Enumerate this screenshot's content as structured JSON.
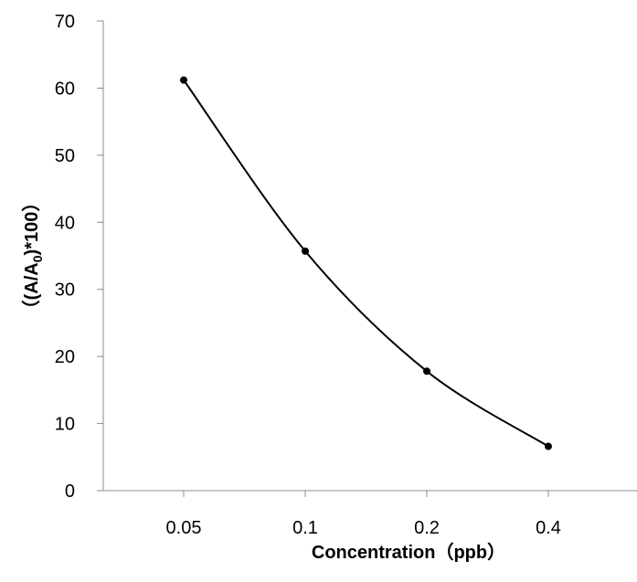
{
  "chart_data": {
    "type": "line",
    "categories": [
      "0.05",
      "0.1",
      "0.2",
      "0.4"
    ],
    "series": [
      {
        "values": [
          61.2,
          35.7,
          17.8,
          6.6
        ]
      }
    ],
    "xlabel": "Concentration（ppb）",
    "ylabel_parts": {
      "prefix": "（(A/A",
      "sub": "0",
      "suffix": ")*100）"
    },
    "ylim": [
      0,
      70
    ],
    "yticks": [
      0,
      10,
      20,
      30,
      40,
      50,
      60,
      70
    ],
    "grid": false,
    "legend": false,
    "line_style": "smooth",
    "colors": {
      "line": "#000000",
      "axis": "#8c8c8c",
      "marker": "#000000"
    }
  }
}
